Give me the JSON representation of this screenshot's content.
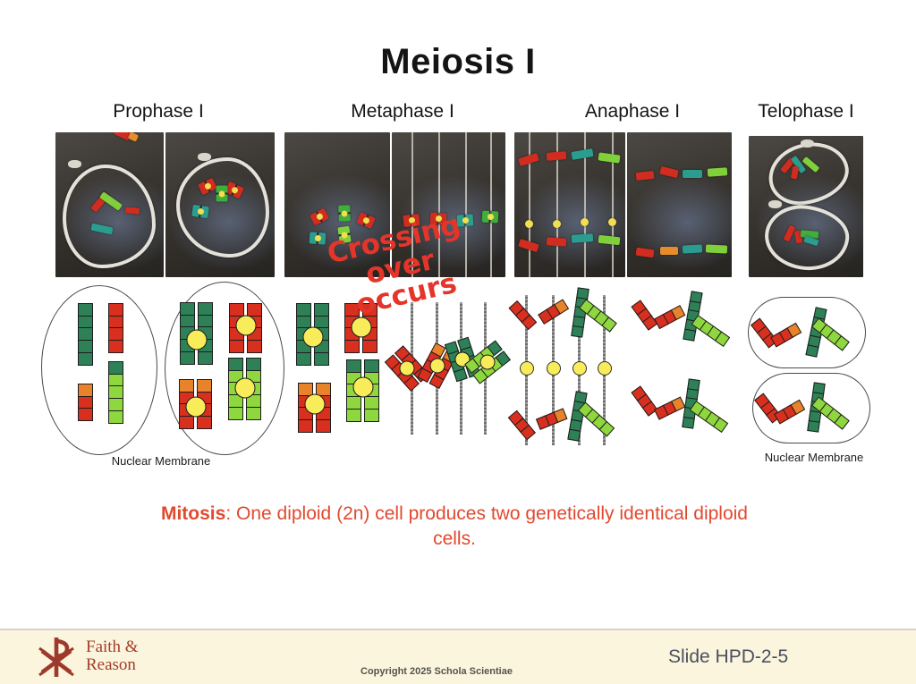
{
  "slide": {
    "title": "Meiosis I"
  },
  "phases": [
    {
      "label": "Prophase I"
    },
    {
      "label": "Metaphase I"
    },
    {
      "label": "Anaphase I"
    },
    {
      "label": "Telophase I"
    }
  ],
  "annotations": {
    "crossing_over_line1": "Crossing over",
    "crossing_over_line2": "occurs",
    "nuclear_membrane_left": "Nuclear Membrane",
    "nuclear_membrane_right": "Nuclear Membrane"
  },
  "caption": {
    "term": "Mitosis",
    "rest": ": One diploid (2n) cell produces two genetically identical diploid cells."
  },
  "footer": {
    "brand_line1": "Faith &",
    "brand_line2": "Reason",
    "copyright": "Copyright 2025 Schola Scientiae",
    "slide_label": "Slide HPD-2-5"
  },
  "diagram": {
    "palette": {
      "dg": "#2e8057",
      "lg": "#8fd73e",
      "rd": "#d92f1e",
      "or": "#e8832c",
      "yl": "#f8ec5a"
    },
    "patterns": {
      "greenLong": [
        "dg",
        "dg",
        "dg",
        "dg",
        "dg"
      ],
      "green4": [
        "dg",
        "dg",
        "dg",
        "dg"
      ],
      "red4": [
        "rd",
        "rd",
        "rd",
        "rd"
      ],
      "red3": [
        "rd",
        "rd",
        "rd"
      ],
      "orangeRed3": [
        "or",
        "rd",
        "rd"
      ],
      "orangeRed4": [
        "or",
        "rd",
        "rd",
        "rd"
      ],
      "limeLong": [
        "dg",
        "lg",
        "lg",
        "lg",
        "lg"
      ],
      "lime4": [
        "lg",
        "lg",
        "lg",
        "lg"
      ],
      "limeTip": [
        "dg",
        "lg",
        "lg",
        "lg"
      ]
    },
    "photo_colors": {
      "red": "#d02c20",
      "green": "#3fae3a",
      "teal": "#2a9d8f",
      "lime": "#7fd03a",
      "orange": "#e78c2a"
    }
  }
}
